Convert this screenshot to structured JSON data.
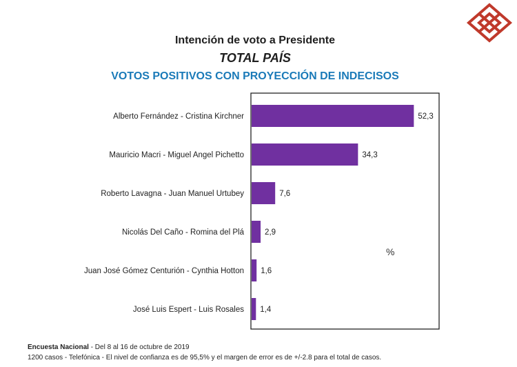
{
  "colors": {
    "bar": "#7030A0",
    "title_accent": "#1a7ab8",
    "logo": "#c0392b"
  },
  "logo": {
    "icon": "diamond-cube-logo"
  },
  "header": {
    "line1": "Intención de voto a Presidente",
    "line2": "TOTAL PAÍS",
    "line3": "VOTOS POSITIVOS CON PROYECCIÓN DE INDECISOS"
  },
  "chart_data": {
    "type": "bar",
    "orientation": "horizontal",
    "categories": [
      "Alberto Fernández - Cristina Kirchner",
      "Mauricio Macri - Miguel Angel Pichetto",
      "Roberto Lavagna - Juan Manuel Urtubey",
      "Nicolás Del Caño - Romina del Plá",
      "Juan José Gómez Centurión - Cynthia  Hotton",
      "José Luis Espert - Luis Rosales"
    ],
    "values": [
      52.3,
      34.3,
      7.6,
      2.9,
      1.6,
      1.4
    ],
    "value_labels": [
      "52,3",
      "34,3",
      "7,6",
      "2,9",
      "1,6",
      "1,4"
    ],
    "unit": "%",
    "xlim": [
      0,
      60
    ],
    "grid": false
  },
  "footer": {
    "survey_label": "Encuesta Nacional",
    "survey_dates": " - Del 8 al 16 de octubre de 2019",
    "method_note": "1200 casos - Telefónica  - El nivel de confianza es de 95,5% y el margen de error es de +/-2.8 para el total de casos."
  }
}
